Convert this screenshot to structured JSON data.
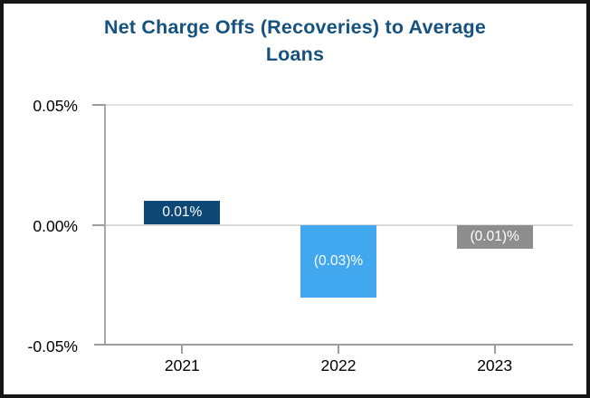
{
  "window": {
    "background": "#ffffff",
    "frame_border_color": "#161616"
  },
  "chart_data": {
    "type": "bar",
    "title": "Net Charge Offs (Recoveries) to Average Loans",
    "title_lines": [
      "Net Charge Offs (Recoveries) to Average",
      "Loans"
    ],
    "title_color": "#15527e",
    "categories": [
      "2021",
      "2022",
      "2023"
    ],
    "values": [
      0.01,
      -0.03,
      -0.01
    ],
    "bar_labels": [
      "0.01%",
      "(0.03)%",
      "(0.01)%"
    ],
    "bar_colors": [
      "#0d4776",
      "#41a8f0",
      "#8d8d8d"
    ],
    "bar_label_color": "#ffffff",
    "unit": "%",
    "y_ticks": [
      {
        "label": "0.05%",
        "value": 0.05
      },
      {
        "label": "0.00%",
        "value": 0.0
      },
      {
        "label": "-0.05%",
        "value": -0.05
      }
    ],
    "ylim": [
      -0.05,
      0.05
    ],
    "xlabel": "",
    "ylabel": "",
    "grid": true,
    "legend": false
  }
}
